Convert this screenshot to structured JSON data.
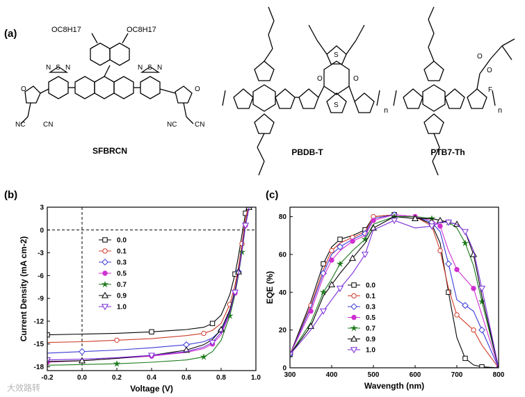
{
  "panels": {
    "a": "(a)",
    "b": "(b)",
    "c": "(c)"
  },
  "molecules": {
    "sfbrcn": "SFBRCN",
    "pbdbt": "PBDB-T",
    "ptb7th": "PTB7-Th",
    "octyl_left": "OC8H17",
    "octyl_right": "OC8H17",
    "n_label": "n"
  },
  "watermark": "大效路转",
  "chart_data": [
    {
      "type": "line",
      "title": "",
      "xlabel": "Voltage (V)",
      "ylabel": "Current Density (mA cm-2)",
      "xlim": [
        -0.2,
        1.0
      ],
      "ylim": [
        -18.5,
        3
      ],
      "xticks": [
        "-0.2",
        "0.0",
        "0.2",
        "0.4",
        "0.6",
        "0.8",
        "1.0"
      ],
      "yticks": [
        "3",
        "0",
        "-3",
        "-6",
        "-9",
        "-12",
        "-15",
        "-18"
      ],
      "legend_position": "center-left",
      "series": [
        {
          "name": "0.0",
          "marker": "square-open",
          "color": "#000000",
          "x": [
            -0.2,
            0.0,
            0.2,
            0.4,
            0.6,
            0.7,
            0.75,
            0.8,
            0.85,
            0.88,
            0.9,
            0.92,
            0.94,
            0.95
          ],
          "y": [
            -13.8,
            -13.7,
            -13.6,
            -13.4,
            -13.1,
            -12.8,
            -12.3,
            -11.2,
            -8.5,
            -5.8,
            -3.4,
            -0.6,
            2.2,
            3.0
          ]
        },
        {
          "name": "0.1",
          "marker": "circle-open",
          "color": "#d03a2a",
          "x": [
            -0.2,
            0.0,
            0.2,
            0.4,
            0.6,
            0.7,
            0.75,
            0.8,
            0.85,
            0.88,
            0.9,
            0.92,
            0.94,
            0.955
          ],
          "y": [
            -14.8,
            -14.7,
            -14.5,
            -14.3,
            -13.9,
            -13.6,
            -13.2,
            -12.3,
            -9.8,
            -7.2,
            -4.8,
            -1.8,
            1.4,
            3.0
          ]
        },
        {
          "name": "0.3",
          "marker": "diamond-open",
          "color": "#3a3ad8",
          "x": [
            -0.2,
            0.0,
            0.2,
            0.4,
            0.6,
            0.7,
            0.75,
            0.8,
            0.85,
            0.88,
            0.9,
            0.92,
            0.94,
            0.96
          ],
          "y": [
            -16.2,
            -16.0,
            -15.8,
            -15.5,
            -15.1,
            -14.7,
            -14.2,
            -13.2,
            -10.6,
            -8.0,
            -5.5,
            -2.5,
            0.8,
            3.0
          ]
        },
        {
          "name": "0.5",
          "marker": "circle-filled",
          "color": "#d030d0",
          "x": [
            -0.2,
            0.0,
            0.2,
            0.4,
            0.6,
            0.7,
            0.75,
            0.8,
            0.85,
            0.88,
            0.9,
            0.92,
            0.94,
            0.96
          ],
          "y": [
            -17.4,
            -17.2,
            -16.9,
            -16.6,
            -16.1,
            -15.6,
            -15.0,
            -13.8,
            -11.0,
            -8.3,
            -5.8,
            -2.8,
            0.6,
            3.0
          ]
        },
        {
          "name": "0.7",
          "marker": "star-filled",
          "color": "#1a7a1a",
          "x": [
            -0.2,
            0.0,
            0.2,
            0.4,
            0.6,
            0.7,
            0.75,
            0.8,
            0.85,
            0.88,
            0.9,
            0.92,
            0.94,
            0.96
          ],
          "y": [
            -17.8,
            -17.7,
            -17.6,
            -17.4,
            -17.1,
            -16.7,
            -16.0,
            -14.5,
            -11.3,
            -8.5,
            -5.9,
            -2.9,
            0.5,
            3.0
          ]
        },
        {
          "name": "0.9",
          "marker": "triangle-up-open",
          "color": "#000000",
          "x": [
            -0.2,
            0.0,
            0.2,
            0.4,
            0.6,
            0.7,
            0.75,
            0.8,
            0.85,
            0.88,
            0.9,
            0.92,
            0.94,
            0.96
          ],
          "y": [
            -17.3,
            -17.2,
            -16.9,
            -16.5,
            -15.8,
            -15.1,
            -14.4,
            -13.1,
            -10.5,
            -7.9,
            -5.5,
            -2.6,
            0.7,
            3.0
          ]
        },
        {
          "name": "1.0",
          "marker": "triangle-down-open",
          "color": "#7a2ad8",
          "x": [
            -0.2,
            0.0,
            0.2,
            0.4,
            0.6,
            0.7,
            0.75,
            0.8,
            0.85,
            0.88,
            0.9,
            0.92,
            0.94,
            0.96
          ],
          "y": [
            -17.1,
            -17.0,
            -16.8,
            -16.5,
            -16.0,
            -15.4,
            -14.8,
            -13.5,
            -10.8,
            -8.2,
            -5.7,
            -2.7,
            0.6,
            3.0
          ]
        }
      ]
    },
    {
      "type": "line",
      "title": "",
      "xlabel": "Wavength (nm)",
      "ylabel": "EQE (%)",
      "xlim": [
        300,
        800
      ],
      "ylim": [
        0,
        85
      ],
      "xticks": [
        "300",
        "400",
        "500",
        "600",
        "700",
        "800"
      ],
      "yticks": [
        "0",
        "20",
        "40",
        "60",
        "80"
      ],
      "legend_position": "bottom-center",
      "series": [
        {
          "name": "0.0",
          "marker": "square-open",
          "color": "#000000",
          "x": [
            300,
            350,
            380,
            400,
            420,
            450,
            480,
            500,
            550,
            600,
            640,
            660,
            680,
            700,
            720,
            740,
            760,
            800
          ],
          "y": [
            7,
            35,
            55,
            64,
            68,
            70,
            73,
            80,
            81,
            80,
            76,
            66,
            40,
            16,
            5,
            1.5,
            0.5,
            0
          ]
        },
        {
          "name": "0.1",
          "marker": "circle-open",
          "color": "#d03a2a",
          "x": [
            300,
            350,
            380,
            400,
            420,
            450,
            480,
            500,
            550,
            600,
            640,
            660,
            680,
            700,
            720,
            740,
            760,
            800
          ],
          "y": [
            7,
            33,
            52,
            62,
            66,
            69,
            72,
            80,
            81,
            80,
            75,
            62,
            42,
            28,
            24,
            20,
            12,
            0
          ]
        },
        {
          "name": "0.3",
          "marker": "diamond-open",
          "color": "#3a3ad8",
          "x": [
            300,
            350,
            380,
            400,
            420,
            450,
            480,
            500,
            550,
            600,
            640,
            660,
            680,
            700,
            720,
            740,
            760,
            800
          ],
          "y": [
            7,
            32,
            50,
            60,
            64,
            68,
            71,
            79,
            81,
            80,
            77,
            72,
            55,
            36,
            33,
            30,
            20,
            0
          ]
        },
        {
          "name": "0.5",
          "marker": "circle-filled",
          "color": "#d030d0",
          "x": [
            300,
            350,
            380,
            400,
            420,
            450,
            480,
            500,
            550,
            600,
            640,
            660,
            680,
            700,
            720,
            740,
            760,
            800
          ],
          "y": [
            7,
            30,
            48,
            57,
            62,
            67,
            70,
            78,
            81,
            80,
            78,
            75,
            62,
            52,
            47,
            42,
            28,
            0
          ]
        },
        {
          "name": "0.7",
          "marker": "star-filled",
          "color": "#1a7a1a",
          "x": [
            300,
            350,
            380,
            400,
            420,
            450,
            480,
            500,
            550,
            600,
            640,
            660,
            680,
            700,
            720,
            740,
            760,
            800
          ],
          "y": [
            7,
            24,
            40,
            47,
            55,
            62,
            68,
            76,
            80,
            80,
            79,
            78,
            77,
            74,
            66,
            54,
            35,
            0
          ]
        },
        {
          "name": "0.9",
          "marker": "triangle-up-open",
          "color": "#000000",
          "x": [
            300,
            350,
            380,
            400,
            420,
            450,
            480,
            500,
            550,
            600,
            640,
            660,
            680,
            700,
            720,
            740,
            760,
            800
          ],
          "y": [
            7,
            22,
            38,
            44,
            50,
            58,
            66,
            74,
            80,
            79,
            79,
            78,
            77,
            76,
            72,
            60,
            38,
            0
          ]
        },
        {
          "name": "1.0",
          "marker": "triangle-down-open",
          "color": "#7a2ad8",
          "x": [
            300,
            350,
            380,
            400,
            420,
            450,
            480,
            500,
            550,
            600,
            640,
            660,
            680,
            700,
            720,
            740,
            760,
            800
          ],
          "y": [
            7,
            20,
            30,
            36,
            42,
            50,
            60,
            73,
            78,
            74,
            75,
            77,
            77,
            76,
            72,
            62,
            42,
            0
          ]
        }
      ]
    }
  ]
}
